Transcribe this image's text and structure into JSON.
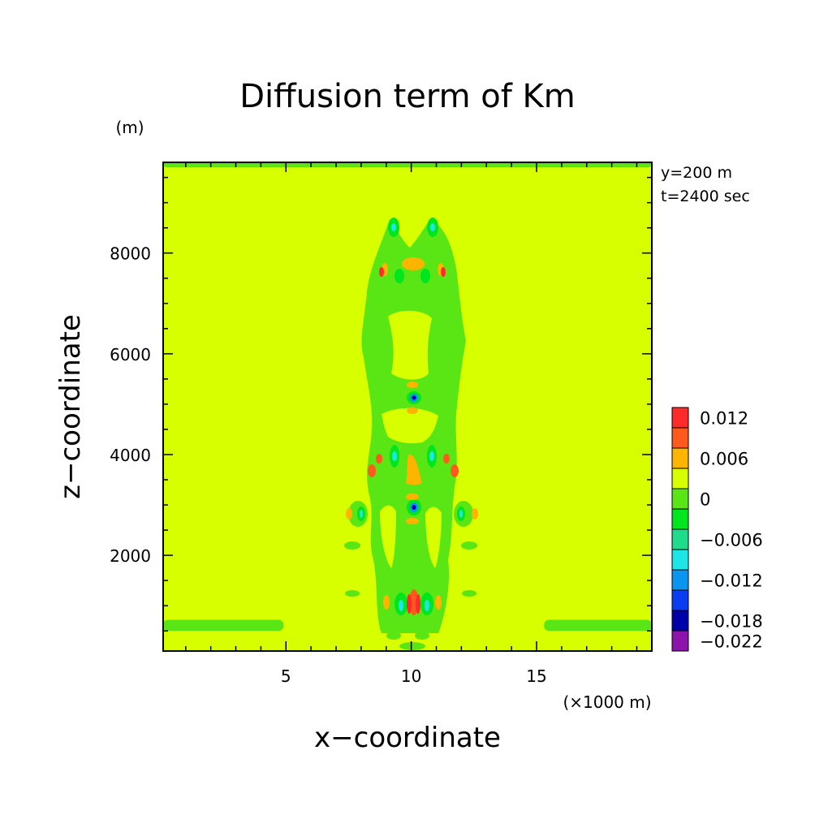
{
  "chart_data": {
    "type": "heatmap",
    "title": "Diffusion term of Km",
    "xlabel": "x−coordinate",
    "ylabel": "z−coordinate",
    "x_unit": "(×1000 m)",
    "y_unit": "(m)",
    "info": [
      "y=200 m",
      "t=2400 sec"
    ],
    "xlim": [
      0.1,
      19.6
    ],
    "ylim": [
      100,
      9800
    ],
    "x_ticks": [
      5,
      10,
      15
    ],
    "x_tick_labels": [
      "5",
      "10",
      "15"
    ],
    "y_ticks": [
      2000,
      4000,
      6000,
      8000
    ],
    "y_tick_labels": [
      "2000",
      "4000",
      "6000",
      "8000"
    ],
    "background_level": "0",
    "colorbar": {
      "levels": [
        {
          "label": "0.012",
          "color": "#ff2a2a"
        },
        {
          "label": "",
          "color": "#ff5a1e"
        },
        {
          "label": "0.006",
          "color": "#ffb400"
        },
        {
          "label": "",
          "color": "#d7ff00"
        },
        {
          "label": "0",
          "color": "#5ae614"
        },
        {
          "label": "",
          "color": "#00e61e"
        },
        {
          "label": "−0.006",
          "color": "#1edc8c"
        },
        {
          "label": "",
          "color": "#1ee6e6"
        },
        {
          "label": "−0.012",
          "color": "#0a96f0"
        },
        {
          "label": "",
          "color": "#0a3cf0"
        },
        {
          "label": "−0.018",
          "color": "#0000aa"
        },
        {
          "label": "−0.022",
          "color": "#8c14aa"
        }
      ]
    },
    "regions": [
      {
        "level": "neg-small",
        "color": "#5ae614",
        "x": [
          10.0,
          10.0
        ],
        "z": [
          0,
          0
        ],
        "shape": "band",
        "z_range": [
          9700,
          9800
        ],
        "x_range": [
          0.1,
          19.6
        ]
      },
      {
        "level": "neg-small",
        "color": "#5ae614",
        "shape": "band",
        "z_range": [
          500,
          720
        ],
        "x_range": [
          0.1,
          4.9
        ]
      },
      {
        "level": "neg-small",
        "color": "#5ae614",
        "shape": "band",
        "z_range": [
          500,
          720
        ],
        "x_range": [
          15.3,
          19.6
        ]
      }
    ],
    "features": [
      {
        "x": 10.1,
        "z": 5200,
        "value": -0.018
      },
      {
        "x": 10.0,
        "z": 3000,
        "value": -0.018
      },
      {
        "x": 9.5,
        "z": 8600,
        "value": -0.012
      },
      {
        "x": 10.9,
        "z": 8600,
        "value": -0.012
      },
      {
        "x": 9.6,
        "z": 4000,
        "value": -0.012
      },
      {
        "x": 10.8,
        "z": 4000,
        "value": -0.012
      },
      {
        "x": 8.3,
        "z": 2850,
        "value": -0.012
      },
      {
        "x": 12.1,
        "z": 2850,
        "value": -0.012
      },
      {
        "x": 9.8,
        "z": 1000,
        "value": 0.012
      },
      {
        "x": 10.3,
        "z": 1000,
        "value": 0.012
      },
      {
        "x": 9.2,
        "z": 7700,
        "value": 0.012
      },
      {
        "x": 11.4,
        "z": 7700,
        "value": 0.012
      }
    ]
  }
}
